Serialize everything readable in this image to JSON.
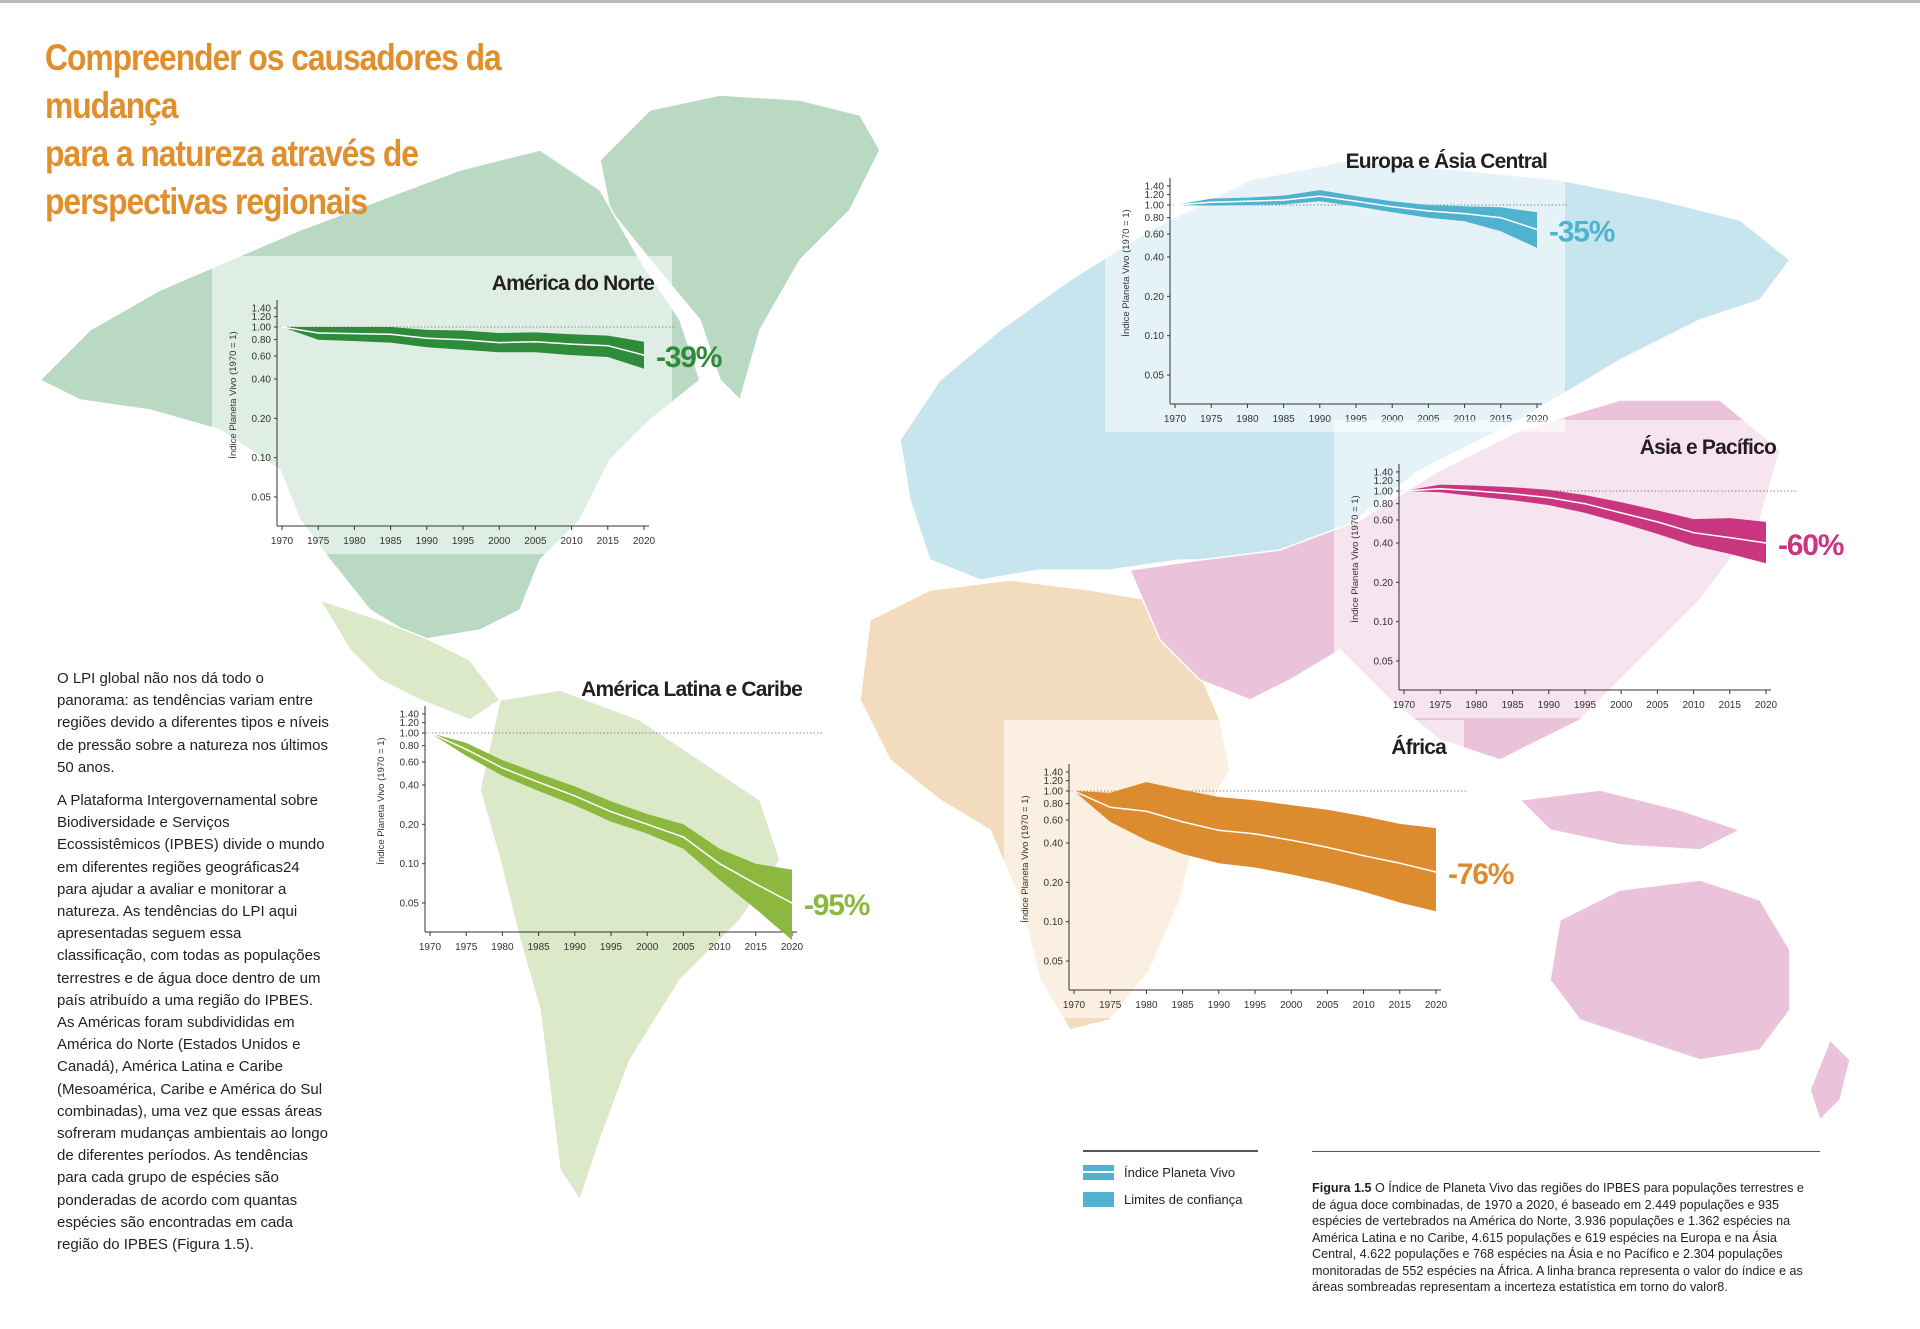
{
  "title_lines": [
    "Compreender os causadores da mudança",
    "para a natureza através de",
    "perspectivas regionais"
  ],
  "body_paragraphs": [
    "O LPI global não nos dá todo o panorama: as tendências variam entre regiões devido a diferentes tipos e níveis de pressão sobre a natureza nos últimos 50 anos.",
    "A Plataforma Intergovernamental sobre Biodiversidade e Serviços Ecossistêmicos (IPBES) divide o mundo em diferentes regiões geográficas24 para ajudar a avaliar e monitorar a natureza. As tendências do LPI aqui apresentadas seguem essa classificação, com todas as populações terrestres e de água doce dentro de um país atribuído a uma região do IPBES. As Américas foram subdivididas em América do Norte (Estados Unidos e Canadá), América Latina e Caribe (Mesoamérica, Caribe e América do Sul combinadas), uma vez que essas áreas sofreram mudanças ambientais ao longo de diferentes períodos. As tendências para cada grupo de espécies são ponderadas de acordo com quantas espécies são encontradas em cada região do IPBES (Figura 1.5)."
  ],
  "legend": {
    "index_label": "Índice Planeta Vivo",
    "ci_label": "Limites de confiança",
    "color": "#4fb3cf"
  },
  "caption": {
    "figure_label": "Figura 1.5",
    "text": "O Índice de Planeta Vivo das regiões do IPBES para populações terrestres e de água doce combinadas, de 1970 a 2020, é baseado em 2.449 populações e 935 espécies de vertebrados na América do Norte, 3.936 populações e 1.362 espécies na América Latina e no Caribe, 4.615 populações e 619 espécies na Europa e na Ásia Central, 4.622 populações e 768 espécies na Ásia e no Pacífico e 2.304 populações monitoradas de 552 espécies na África. A linha branca representa o valor do índice e as áreas sombreadas representam a incerteza estatística em torno do valor8."
  },
  "region_colors": {
    "north_america": "#b9d9c3",
    "latin_america": "#dbe9c8",
    "europe_central_asia": "#c6e5ef",
    "africa": "#f3dcbd",
    "asia_pacific": "#eac3da"
  },
  "chart_data": [
    {
      "type": "area",
      "title": "América do Norte",
      "change_label": "-39%",
      "color": "#2e8b3a",
      "ylabel": "Índice Planeta Vivo (1970 = 1)",
      "yscale": "log",
      "ylim": [
        0.03,
        1.5
      ],
      "yticks": [
        "1.40",
        "1.20",
        "1.00",
        "0.80",
        "0.60",
        "0.40",
        "0.20",
        "0.10",
        "0.05"
      ],
      "x": [
        1970,
        1975,
        1980,
        1985,
        1990,
        1995,
        2000,
        2005,
        2010,
        2015,
        2020
      ],
      "index": [
        1.0,
        0.9,
        0.89,
        0.88,
        0.82,
        0.8,
        0.76,
        0.77,
        0.74,
        0.72,
        0.61
      ],
      "lower": [
        1.0,
        0.8,
        0.78,
        0.76,
        0.7,
        0.67,
        0.64,
        0.64,
        0.61,
        0.59,
        0.48
      ],
      "upper": [
        1.0,
        1.0,
        1.0,
        1.0,
        0.95,
        0.94,
        0.9,
        0.91,
        0.88,
        0.86,
        0.77
      ],
      "grid": false
    },
    {
      "type": "area",
      "title": "Europa e Ásia Central",
      "change_label": "-35%",
      "color": "#4fb3cf",
      "ylabel": "Índice Planeta Vivo (1970 = 1)",
      "yscale": "log",
      "ylim": [
        0.03,
        1.5
      ],
      "yticks": [
        "1.40",
        "1.20",
        "1.00",
        "0.80",
        "0.60",
        "0.40",
        "0.20",
        "0.10",
        "0.05"
      ],
      "x": [
        1970,
        1975,
        1980,
        1985,
        1990,
        1995,
        2000,
        2005,
        2010,
        2015,
        2020
      ],
      "index": [
        1.0,
        1.05,
        1.07,
        1.09,
        1.17,
        1.07,
        0.97,
        0.9,
        0.86,
        0.8,
        0.65
      ],
      "lower": [
        1.0,
        0.99,
        1.0,
        1.01,
        1.07,
        0.98,
        0.88,
        0.8,
        0.75,
        0.63,
        0.47
      ],
      "upper": [
        1.0,
        1.12,
        1.14,
        1.18,
        1.3,
        1.17,
        1.07,
        1.0,
        0.98,
        0.96,
        0.88
      ],
      "grid": false
    },
    {
      "type": "area",
      "title": "Ásia e Pacífico",
      "change_label": "-60%",
      "color": "#c9357f",
      "ylabel": "Índice Planeta Vivo (1970 = 1)",
      "yscale": "log",
      "ylim": [
        0.03,
        1.5
      ],
      "yticks": [
        "1.40",
        "1.20",
        "1.00",
        "0.80",
        "0.60",
        "0.40",
        "0.20",
        "0.10",
        "0.05"
      ],
      "x": [
        1970,
        1975,
        1980,
        1985,
        1990,
        1995,
        2000,
        2005,
        2010,
        2015,
        2020
      ],
      "index": [
        1.0,
        1.04,
        1.0,
        0.95,
        0.89,
        0.8,
        0.68,
        0.58,
        0.48,
        0.44,
        0.4
      ],
      "lower": [
        1.0,
        0.98,
        0.91,
        0.85,
        0.78,
        0.68,
        0.57,
        0.47,
        0.38,
        0.33,
        0.28
      ],
      "upper": [
        1.0,
        1.12,
        1.1,
        1.07,
        1.02,
        0.93,
        0.82,
        0.71,
        0.61,
        0.62,
        0.58
      ],
      "grid": false
    },
    {
      "type": "area",
      "title": "América Latina e Caribe",
      "change_label": "-95%",
      "color": "#8cb83f",
      "ylabel": "Índice Planeta Vivo (1970 = 1)",
      "yscale": "log",
      "ylim": [
        0.03,
        1.5
      ],
      "yticks": [
        "1.40",
        "1.20",
        "1.00",
        "0.80",
        "0.60",
        "0.40",
        "0.20",
        "0.10",
        "0.05"
      ],
      "x": [
        1970,
        1975,
        1980,
        1985,
        1990,
        1995,
        2000,
        2005,
        2010,
        2015,
        2020
      ],
      "index": [
        1.0,
        0.75,
        0.54,
        0.42,
        0.33,
        0.25,
        0.2,
        0.16,
        0.1,
        0.07,
        0.05
      ],
      "lower": [
        1.0,
        0.67,
        0.47,
        0.36,
        0.28,
        0.21,
        0.17,
        0.13,
        0.075,
        0.045,
        0.026
      ],
      "upper": [
        1.0,
        0.84,
        0.62,
        0.49,
        0.39,
        0.3,
        0.24,
        0.2,
        0.13,
        0.1,
        0.09
      ],
      "grid": false
    },
    {
      "type": "area",
      "title": "África",
      "change_label": "-76%",
      "color": "#dc8b2e",
      "ylabel": "Índice Planeta Vivo (1970 = 1)",
      "yscale": "log",
      "ylim": [
        0.03,
        1.5
      ],
      "yticks": [
        "1.40",
        "1.20",
        "1.00",
        "0.80",
        "0.60",
        "0.40",
        "0.20",
        "0.10",
        "0.05"
      ],
      "x": [
        1970,
        1975,
        1980,
        1985,
        1990,
        1995,
        2000,
        2005,
        2010,
        2015,
        2020
      ],
      "index": [
        1.0,
        0.75,
        0.7,
        0.58,
        0.5,
        0.47,
        0.42,
        0.37,
        0.32,
        0.28,
        0.24
      ],
      "lower": [
        1.0,
        0.58,
        0.42,
        0.33,
        0.28,
        0.26,
        0.23,
        0.2,
        0.17,
        0.14,
        0.12
      ],
      "upper": [
        1.0,
        0.97,
        1.17,
        1.02,
        0.9,
        0.85,
        0.78,
        0.72,
        0.64,
        0.56,
        0.52
      ],
      "grid": false
    }
  ]
}
